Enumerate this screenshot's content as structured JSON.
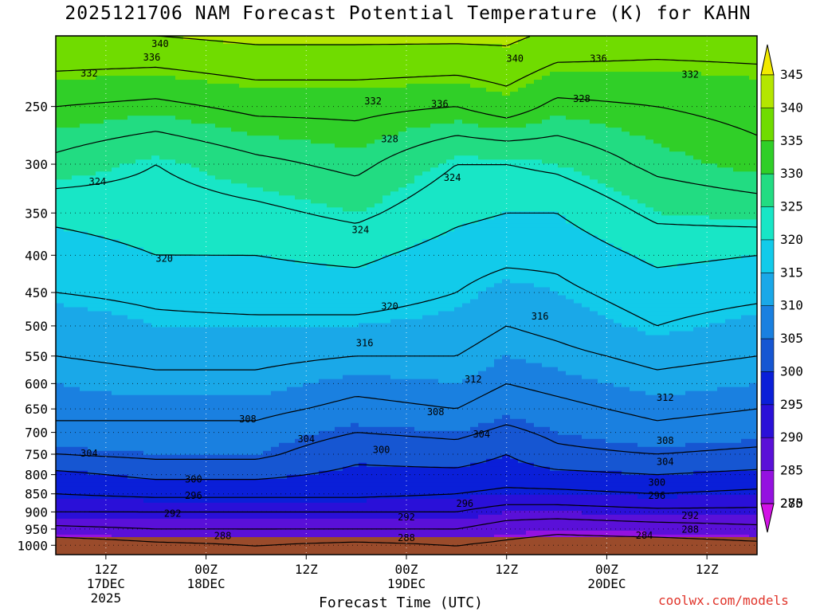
{
  "title": "2025121706 NAM Forecast Potential Temperature (K) for KAHN",
  "credit": "coolwx.com/models",
  "chart_data": {
    "type": "heatmap",
    "title": "2025121706 NAM Forecast Potential Temperature (K) for KAHN",
    "xlabel": "Forecast Time (UTC)",
    "ylabel": "",
    "y_axis": {
      "scale": "log",
      "inverted": true,
      "ylim": [
        1030,
        200
      ],
      "ticks": [
        250,
        300,
        350,
        400,
        450,
        500,
        550,
        600,
        650,
        700,
        750,
        800,
        850,
        900,
        950,
        1000
      ]
    },
    "x_axis": {
      "xlim": [
        6,
        90
      ],
      "grid": true,
      "ticks": [
        {
          "hour": 12,
          "label": "12Z",
          "sub": "17DEC",
          "sub2": "2025"
        },
        {
          "hour": 24,
          "label": "00Z",
          "sub": "18DEC",
          "sub2": ""
        },
        {
          "hour": 36,
          "label": "12Z",
          "sub": "",
          "sub2": ""
        },
        {
          "hour": 48,
          "label": "00Z",
          "sub": "19DEC",
          "sub2": ""
        },
        {
          "hour": 60,
          "label": "12Z",
          "sub": "",
          "sub2": ""
        },
        {
          "hour": 72,
          "label": "00Z",
          "sub": "20DEC",
          "sub2": ""
        },
        {
          "hour": 84,
          "label": "12Z",
          "sub": "",
          "sub2": ""
        }
      ]
    },
    "colorbar": {
      "units": "K",
      "labels": [
        345,
        340,
        335,
        330,
        325,
        320,
        315,
        310,
        305,
        300,
        295,
        290,
        285,
        280,
        275
      ],
      "colors": [
        "#f2ea00",
        "#b4e600",
        "#70dc00",
        "#30cf28",
        "#22dc82",
        "#18e6c6",
        "#12cbea",
        "#1aa8e8",
        "#1a80e0",
        "#1656d2",
        "#0a1fd8",
        "#2a10d8",
        "#5a10d8",
        "#9412e0",
        "#d212e6"
      ]
    },
    "surface_color": "#9a4b2b",
    "profiles": [
      {
        "hour": 6,
        "theta": {
          "1000": 281,
          "950": 287,
          "900": 292,
          "850": 296,
          "800": 299,
          "750": 304,
          "700": 307,
          "650": 309,
          "600": 310,
          "550": 312,
          "500": 313,
          "450": 316,
          "400": 318,
          "350": 321,
          "300": 327,
          "250": 332,
          "200": 340
        }
      },
      {
        "hour": 18,
        "theta": {
          "1000": 283,
          "950": 288,
          "900": 292,
          "850": 297,
          "800": 301,
          "750": 305,
          "700": 307,
          "650": 309,
          "600": 311,
          "550": 313,
          "500": 315,
          "450": 317,
          "400": 320,
          "350": 322,
          "300": 324,
          "250": 331,
          "200": 340
        }
      },
      {
        "hour": 30,
        "theta": {
          "1000": 284,
          "950": 288,
          "900": 292,
          "850": 297,
          "800": 301,
          "750": 305,
          "700": 307,
          "650": 309,
          "600": 311,
          "550": 313,
          "500": 315,
          "450": 318,
          "400": 320,
          "350": 323,
          "300": 327,
          "250": 333,
          "200": 341
        }
      },
      {
        "hour": 42,
        "theta": {
          "1000": 283,
          "950": 288,
          "900": 292,
          "850": 297,
          "800": 299,
          "750": 301,
          "700": 304,
          "650": 307,
          "600": 309,
          "550": 312,
          "500": 315,
          "450": 318,
          "400": 321,
          "350": 325,
          "300": 329,
          "250": 333,
          "200": 341
        }
      },
      {
        "hour": 54,
        "theta": {
          "1000": 284,
          "950": 288,
          "900": 292,
          "850": 296,
          "800": 299,
          "750": 302,
          "700": 305,
          "650": 308,
          "600": 310,
          "550": 312,
          "500": 314,
          "450": 316,
          "400": 318,
          "350": 321,
          "300": 324,
          "250": 332,
          "200": 341
        }
      },
      {
        "hour": 60,
        "theta": {
          "1000": 283,
          "950": 286,
          "900": 290,
          "850": 295,
          "800": 298,
          "750": 300,
          "700": 303,
          "650": 306,
          "600": 308,
          "550": 310,
          "500": 312,
          "450": 314,
          "400": 317,
          "350": 320,
          "300": 324,
          "250": 334,
          "200": 341
        }
      },
      {
        "hour": 66,
        "theta": {
          "1000": 282,
          "950": 285,
          "900": 290,
          "850": 295,
          "800": 299,
          "750": 303,
          "700": 305,
          "650": 307,
          "600": 309,
          "550": 311,
          "500": 313,
          "450": 315,
          "400": 317,
          "350": 320,
          "300": 325,
          "250": 331,
          "200": 339
        }
      },
      {
        "hour": 78,
        "theta": {
          "1000": 282,
          "950": 286,
          "900": 291,
          "850": 296,
          "800": 300,
          "750": 304,
          "700": 307,
          "650": 309,
          "600": 311,
          "550": 313,
          "500": 316,
          "450": 318,
          "400": 321,
          "350": 325,
          "300": 329,
          "250": 332,
          "200": 338
        }
      },
      {
        "hour": 90,
        "theta": {
          "1000": 283,
          "950": 287,
          "900": 291,
          "850": 295,
          "800": 299,
          "750": 303,
          "700": 306,
          "650": 308,
          "600": 310,
          "550": 312,
          "500": 314,
          "450": 317,
          "400": 320,
          "350": 326,
          "300": 331,
          "250": 333,
          "200": 338
        }
      }
    ],
    "contour_labels": [
      {
        "value": "340",
        "hour": 18.5,
        "p": 205
      },
      {
        "value": "336",
        "hour": 17.5,
        "p": 214
      },
      {
        "value": "332",
        "hour": 10,
        "p": 225
      },
      {
        "value": "332",
        "hour": 44,
        "p": 246
      },
      {
        "value": "336",
        "hour": 52,
        "p": 248
      },
      {
        "value": "340",
        "hour": 61,
        "p": 215
      },
      {
        "value": "336",
        "hour": 71,
        "p": 215
      },
      {
        "value": "332",
        "hour": 82,
        "p": 226
      },
      {
        "value": "328",
        "hour": 69,
        "p": 244
      },
      {
        "value": "328",
        "hour": 46,
        "p": 277
      },
      {
        "value": "324",
        "hour": 11,
        "p": 317
      },
      {
        "value": "324",
        "hour": 53.5,
        "p": 313
      },
      {
        "value": "324",
        "hour": 42.5,
        "p": 369
      },
      {
        "value": "320",
        "hour": 19,
        "p": 404
      },
      {
        "value": "320",
        "hour": 46,
        "p": 470
      },
      {
        "value": "316",
        "hour": 64,
        "p": 485
      },
      {
        "value": "316",
        "hour": 43,
        "p": 528
      },
      {
        "value": "312",
        "hour": 56,
        "p": 592
      },
      {
        "value": "312",
        "hour": 79,
        "p": 627
      },
      {
        "value": "308",
        "hour": 29,
        "p": 671
      },
      {
        "value": "308",
        "hour": 51.5,
        "p": 656
      },
      {
        "value": "308",
        "hour": 79,
        "p": 719
      },
      {
        "value": "304",
        "hour": 10,
        "p": 748
      },
      {
        "value": "304",
        "hour": 36,
        "p": 715
      },
      {
        "value": "304",
        "hour": 57,
        "p": 704
      },
      {
        "value": "304",
        "hour": 79,
        "p": 768
      },
      {
        "value": "300",
        "hour": 45,
        "p": 740
      },
      {
        "value": "300",
        "hour": 22.5,
        "p": 812
      },
      {
        "value": "300",
        "hour": 78,
        "p": 820
      },
      {
        "value": "296",
        "hour": 22.5,
        "p": 855
      },
      {
        "value": "296",
        "hour": 55,
        "p": 877
      },
      {
        "value": "296",
        "hour": 78,
        "p": 855
      },
      {
        "value": "292",
        "hour": 20,
        "p": 905
      },
      {
        "value": "292",
        "hour": 48,
        "p": 915
      },
      {
        "value": "292",
        "hour": 82,
        "p": 910
      },
      {
        "value": "288",
        "hour": 26,
        "p": 971
      },
      {
        "value": "288",
        "hour": 48,
        "p": 977
      },
      {
        "value": "288",
        "hour": 82,
        "p": 952
      },
      {
        "value": "284",
        "hour": 76.5,
        "p": 969
      }
    ]
  }
}
